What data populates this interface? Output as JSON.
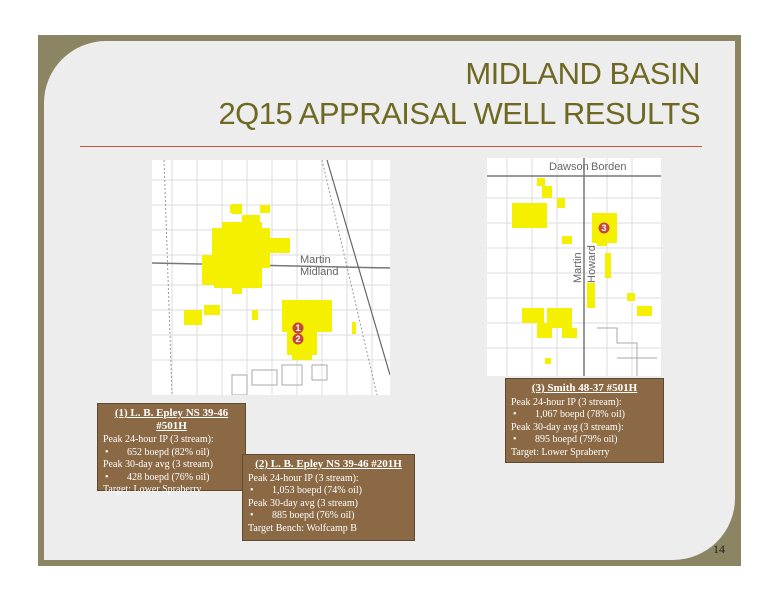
{
  "header": {
    "title_lines": [
      "MIDLAND BASIN",
      "2Q15 APPRAISAL WELL RESULTS"
    ]
  },
  "maps": [
    {
      "labels": [
        "Martin",
        "Midland"
      ],
      "markers": [
        "1",
        "2"
      ]
    },
    {
      "labels": [
        "Dawson",
        "Borden",
        "Martin",
        "Howard"
      ],
      "markers": [
        "3"
      ]
    }
  ],
  "wells": [
    {
      "title": "(1) L. B. Epley NS 39-46 #501H",
      "lines": [
        {
          "text": "Peak 24-hour IP (3 stream):",
          "bullet": false
        },
        {
          "text": "652 boepd (82% oil)",
          "bullet": true
        },
        {
          "text": "Peak 30-day avg (3 stream)",
          "bullet": false
        },
        {
          "text": "428 boepd (76% oil)",
          "bullet": true
        },
        {
          "text": "Target: Lower Spraberry",
          "bullet": false
        }
      ]
    },
    {
      "title": "(2) L. B. Epley NS 39-46 #201H",
      "lines": [
        {
          "text": "Peak 24-hour IP (3 stream):",
          "bullet": false
        },
        {
          "text": "1,053 boepd (74% oil)",
          "bullet": true
        },
        {
          "text": "Peak 30-day avg (3 stream)",
          "bullet": false
        },
        {
          "text": "885 boepd (76% oil)",
          "bullet": true
        },
        {
          "text": "Target Bench:  Wolfcamp B",
          "bullet": false
        }
      ]
    },
    {
      "title": "(3) Smith 48-37 #501H",
      "lines": [
        {
          "text": "Peak 24-hour IP (3 stream):",
          "bullet": false
        },
        {
          "text": "1,067 boepd (78% oil)",
          "bullet": true
        },
        {
          "text": "Peak 30-day avg (3 stream):",
          "bullet": false
        },
        {
          "text": "895 boepd (79% oil)",
          "bullet": true
        },
        {
          "text": "Target:  Lower Spraberry",
          "bullet": false
        }
      ]
    }
  ],
  "page_number": "14"
}
